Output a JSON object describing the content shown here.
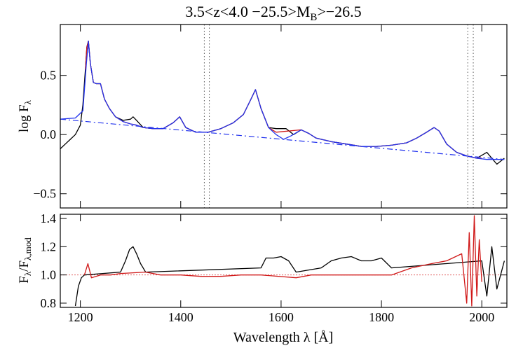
{
  "chart_data": {
    "type": "line",
    "title": {
      "range_text": "3.5<z<4.0 −25.5>M",
      "sub": "B",
      "tail": ">−26.5"
    },
    "xlabel": "Wavelength λ [Å]",
    "xlim": [
      1160,
      2050
    ],
    "xticks": [
      1200,
      1400,
      1600,
      1800,
      2000
    ],
    "xtick_labels": [
      "1200",
      "1400",
      "1600",
      "1800",
      "2000"
    ],
    "top_panel": {
      "ylabel_main": "log F",
      "ylabel_sub": "λ",
      "ylim": [
        -0.62,
        0.93
      ],
      "yticks": [
        -0.5,
        0.0,
        0.5
      ],
      "ytick_labels": [
        "−0.5",
        "0.0",
        "0.5"
      ],
      "vertical_lines_x": [
        1447,
        1457,
        1972,
        1983
      ],
      "series": [
        {
          "role": "observed composite spectrum",
          "color": "#000000",
          "x": [
            1160,
            1170,
            1180,
            1190,
            1200,
            1205,
            1210,
            1213,
            1216,
            1220,
            1226,
            1232,
            1240,
            1248,
            1258,
            1270,
            1285,
            1300,
            1305,
            1312,
            1325,
            1345,
            1365,
            1385,
            1398,
            1410,
            1430,
            1455,
            1480,
            1505,
            1525,
            1540,
            1549,
            1560,
            1575,
            1590,
            1610,
            1625,
            1640,
            1655,
            1670,
            1700,
            1730,
            1760,
            1790,
            1820,
            1850,
            1870,
            1890,
            1905,
            1915,
            1930,
            1950,
            1970,
            1990,
            2010,
            2030,
            2045
          ],
          "y": [
            -0.12,
            -0.08,
            -0.04,
            0.0,
            0.08,
            0.25,
            0.55,
            0.74,
            0.79,
            0.6,
            0.44,
            0.43,
            0.43,
            0.3,
            0.22,
            0.15,
            0.12,
            0.13,
            0.15,
            0.12,
            0.06,
            0.05,
            0.05,
            0.1,
            0.15,
            0.06,
            0.02,
            0.02,
            0.05,
            0.1,
            0.17,
            0.3,
            0.38,
            0.22,
            0.06,
            0.05,
            0.05,
            0.0,
            0.04,
            0.01,
            -0.03,
            -0.06,
            -0.08,
            -0.1,
            -0.1,
            -0.09,
            -0.07,
            -0.03,
            0.02,
            0.06,
            0.03,
            -0.08,
            -0.15,
            -0.18,
            -0.2,
            -0.15,
            -0.25,
            -0.2
          ]
        },
        {
          "role": "model fit",
          "color": "#d01818",
          "x": [
            1210,
            1213,
            1216,
            1220,
            1226,
            1232,
            1240,
            1248,
            1258,
            1270,
            1285,
            1300,
            1312,
            1325,
            1345,
            1365,
            1385,
            1398,
            1410,
            1430,
            1455,
            1480,
            1505,
            1525,
            1540,
            1549,
            1560,
            1575,
            1590,
            1640,
            1655,
            1670,
            1700,
            1730,
            1760,
            1790,
            1820,
            1850,
            1870,
            1890,
            1905,
            1915,
            1930,
            1950,
            1970,
            1990,
            2000
          ],
          "y": [
            0.55,
            0.74,
            0.79,
            0.6,
            0.44,
            0.43,
            0.43,
            0.3,
            0.22,
            0.15,
            0.11,
            0.09,
            0.08,
            0.06,
            0.05,
            0.05,
            0.1,
            0.15,
            0.06,
            0.02,
            0.02,
            0.05,
            0.1,
            0.17,
            0.3,
            0.38,
            0.22,
            0.06,
            0.02,
            0.04,
            0.01,
            -0.03,
            -0.06,
            -0.08,
            -0.1,
            -0.1,
            -0.09,
            -0.07,
            -0.03,
            0.02,
            0.06,
            0.03,
            -0.08,
            -0.15,
            -0.18,
            -0.2,
            -0.2
          ]
        },
        {
          "role": "total model",
          "color": "#2233ee",
          "x": [
            1160,
            1190,
            1205,
            1212,
            1216,
            1220,
            1226,
            1232,
            1240,
            1248,
            1258,
            1270,
            1285,
            1300,
            1312,
            1325,
            1345,
            1365,
            1385,
            1398,
            1410,
            1430,
            1455,
            1480,
            1505,
            1525,
            1540,
            1549,
            1560,
            1575,
            1590,
            1605,
            1620,
            1640,
            1655,
            1670,
            1700,
            1730,
            1760,
            1790,
            1820,
            1850,
            1870,
            1890,
            1905,
            1915,
            1930,
            1950,
            1970,
            1990,
            2010,
            2045
          ],
          "y": [
            0.13,
            0.14,
            0.2,
            0.6,
            0.79,
            0.6,
            0.44,
            0.43,
            0.43,
            0.3,
            0.22,
            0.15,
            0.11,
            0.09,
            0.08,
            0.06,
            0.05,
            0.05,
            0.1,
            0.15,
            0.06,
            0.02,
            0.02,
            0.05,
            0.1,
            0.17,
            0.3,
            0.38,
            0.22,
            0.06,
            0.0,
            -0.04,
            -0.01,
            0.04,
            0.01,
            -0.03,
            -0.06,
            -0.08,
            -0.1,
            -0.1,
            -0.09,
            -0.07,
            -0.03,
            0.02,
            0.06,
            0.03,
            -0.08,
            -0.15,
            -0.18,
            -0.2,
            -0.21,
            -0.21
          ]
        },
        {
          "role": "continuum",
          "color": "#2233ee",
          "dash": true,
          "x": [
            1160,
            2045
          ],
          "y": [
            0.13,
            -0.21
          ]
        }
      ]
    },
    "bottom_panel": {
      "ylabel_main": "F",
      "ylabel_sub1": "λ",
      "ylabel_mid": "/F",
      "ylabel_sub2": "λ,mod",
      "ylim": [
        0.77,
        1.43
      ],
      "yticks": [
        0.8,
        1.0,
        1.2,
        1.4
      ],
      "ytick_labels": [
        "0.8",
        "1.0",
        "1.2",
        "1.4"
      ],
      "reference_line_y": 1.0,
      "series": [
        {
          "role": "ratio (unfitted regions)",
          "color": "#000000",
          "x": [
            1190,
            1196,
            1202,
            1208,
            1280,
            1290,
            1298,
            1305,
            1312,
            1320,
            1330,
            1560,
            1570,
            1585,
            1600,
            1615,
            1630,
            1680,
            1700,
            1720,
            1740,
            1760,
            1780,
            1800,
            1820,
            2000,
            2010,
            2020,
            2030,
            2045
          ],
          "y": [
            0.78,
            0.92,
            0.98,
            1.0,
            1.02,
            1.1,
            1.18,
            1.2,
            1.15,
            1.08,
            1.02,
            1.05,
            1.12,
            1.12,
            1.13,
            1.1,
            1.02,
            1.05,
            1.1,
            1.12,
            1.13,
            1.1,
            1.1,
            1.12,
            1.05,
            1.1,
            0.85,
            1.2,
            0.9,
            1.1
          ]
        },
        {
          "role": "ratio (fitted regions)",
          "color": "#d01818",
          "x": [
            1208,
            1215,
            1222,
            1240,
            1260,
            1280,
            1330,
            1360,
            1400,
            1440,
            1480,
            1520,
            1560,
            1630,
            1660,
            1690,
            1820,
            1860,
            1900,
            1930,
            1960,
            1970,
            1975,
            1980,
            1985,
            1990,
            1995,
            2000
          ],
          "y": [
            1.0,
            1.08,
            0.98,
            1.0,
            1.0,
            1.01,
            1.02,
            1.0,
            1.0,
            0.99,
            0.99,
            1.0,
            1.0,
            0.98,
            1.0,
            1.0,
            1.0,
            1.05,
            1.08,
            1.1,
            1.15,
            0.8,
            1.3,
            0.78,
            1.42,
            0.85,
            1.25,
            0.95
          ]
        }
      ]
    }
  }
}
